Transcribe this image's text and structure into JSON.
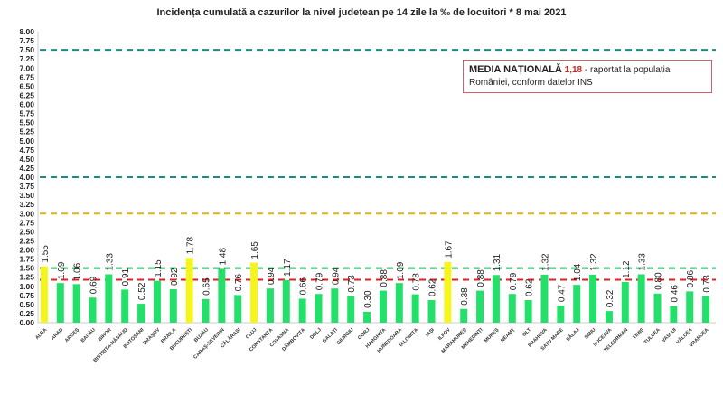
{
  "chart_data": {
    "type": "bar",
    "title": "Incidența cumulată a cazurilor la nivel județean pe 14 zile la ‰ de locuitori *   8 mai 2021",
    "categories": [
      "ALBA",
      "ARAD",
      "ARGEȘ",
      "BACĂU",
      "BIHOR",
      "BISTRIȚA-NĂSĂUD",
      "BOTOȘANI",
      "BRAȘOV",
      "BRĂILA",
      "BUCUREȘTI",
      "BUZĂU",
      "CARAȘ-SEVERIN",
      "CĂLĂRAȘI",
      "CLUJ",
      "CONSTANȚA",
      "COVASNA",
      "DÂMBOVIȚA",
      "DOLJ",
      "GALAȚI",
      "GIURGIU",
      "GORJ",
      "HARGHITA",
      "HUNEDOARA",
      "IALOMIȚA",
      "IAȘI",
      "ILFOV",
      "MARAMUREȘ",
      "MEHEDINȚI",
      "MUREȘ",
      "NEAMȚ",
      "OLT",
      "PRAHOVA",
      "SATU MARE",
      "SĂLAJ",
      "SIBIU",
      "SUCEAVA",
      "TELEORMAN",
      "TIMIȘ",
      "TULCEA",
      "VASLUI",
      "VÂLCEA",
      "VRANCEA"
    ],
    "values": [
      1.55,
      1.09,
      1.06,
      0.69,
      1.33,
      0.91,
      0.52,
      1.15,
      0.92,
      1.78,
      0.65,
      1.48,
      0.76,
      1.65,
      0.94,
      1.17,
      0.66,
      0.79,
      0.94,
      0.73,
      0.3,
      0.88,
      1.09,
      0.78,
      0.62,
      1.67,
      0.38,
      0.88,
      1.31,
      0.79,
      0.62,
      1.32,
      0.47,
      1.04,
      1.32,
      0.32,
      1.12,
      1.33,
      0.8,
      0.46,
      0.86,
      0.73
    ],
    "value_labels": [
      "1.55",
      "1.09",
      "1.06",
      "0.69",
      "1.33",
      "0.91",
      "0.52",
      "1.15",
      "0.92",
      "1.78",
      "0.65",
      "1.48",
      "0.76",
      "1.65",
      "0.94",
      "1.17",
      "0.66",
      "0.79",
      "0.94",
      "0.73",
      "0.30",
      "0.88",
      "1.09",
      "0.78",
      "0.62",
      "1.67",
      "0.38",
      "0.88",
      "1.31",
      "0.79",
      "0.62",
      "1.32",
      "0.47",
      "1.04",
      "1.32",
      "0.32",
      "1.12",
      "1.33",
      "0.80",
      "0.46",
      "0.86",
      "0.73"
    ],
    "ylim": [
      0,
      8
    ],
    "ytick_step": 0.25,
    "grid": false,
    "colors": {
      "bar": "#22e06a",
      "bar_highlight": "#f5f51e",
      "highlight_threshold": 1.5
    },
    "reference_lines": [
      {
        "value": 7.5,
        "color": "#1a8a8a"
      },
      {
        "value": 4.0,
        "color": "#1a8a8a"
      },
      {
        "value": 3.0,
        "color": "#e0b800"
      },
      {
        "value": 1.5,
        "color": "#2aa860"
      },
      {
        "value": 1.18,
        "color": "#e02020"
      }
    ]
  },
  "note": {
    "label": "MEDIA NAȚIONALĂ",
    "value": "1,18",
    "text": " - raportat la populația României, conform datelor INS"
  }
}
